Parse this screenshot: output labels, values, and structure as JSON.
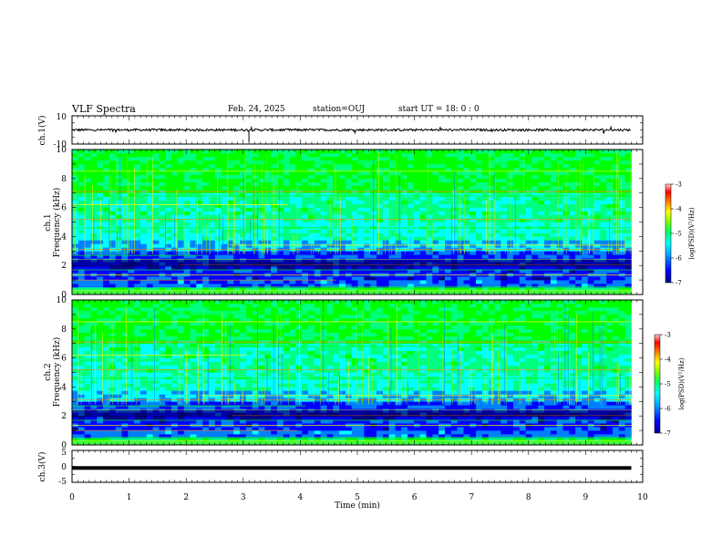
{
  "header": {
    "title": "VLF Spectra",
    "date": "Feb. 24, 2025",
    "station": "station=OUJ",
    "start": "start  UT =   18: 0  : 0"
  },
  "colors": {
    "spectrogram_palette": [
      "#00008b",
      "#0000ff",
      "#0080ff",
      "#00ffff",
      "#00ff80",
      "#00ff00",
      "#80ff00",
      "#ffff00",
      "#ff8000",
      "#ff0000",
      "#ffc0c0"
    ],
    "waveform": "#000000",
    "frame": "#000000"
  },
  "chart_data": [
    {
      "type": "line",
      "panel": "ch.1 waveform",
      "ylabel": "ch.1(V)",
      "ylim": [
        -10,
        10
      ],
      "yticks": [
        "10",
        "-10"
      ],
      "x": [
        0,
        1,
        2,
        3,
        4,
        5,
        6,
        7,
        8,
        9,
        9.8
      ],
      "series": [
        {
          "values": [
            0,
            0,
            0,
            0,
            0,
            0,
            0,
            0,
            0,
            0,
            0
          ]
        }
      ]
    },
    {
      "type": "heatmap",
      "panel": "ch.1 spectrogram",
      "ylabel": "ch.1\nFrequency (kHz)",
      "ylim": [
        0,
        10
      ],
      "yticks": [
        "0",
        "2",
        "4",
        "6",
        "8",
        "10"
      ],
      "colorbar": {
        "label": "log(PSD)(V²/Hz)",
        "range": [
          -7,
          -3
        ],
        "ticks": [
          "-3",
          "-4",
          "-5",
          "-6",
          "-7"
        ]
      }
    },
    {
      "type": "heatmap",
      "panel": "ch.2 spectrogram",
      "ylabel": "ch.2\nFrequency (kHz)",
      "ylim": [
        0,
        10
      ],
      "yticks": [
        "0",
        "2",
        "4",
        "6",
        "8",
        "10"
      ],
      "colorbar": {
        "label": "log(PSD)(V²/Hz)",
        "range": [
          -7,
          -3
        ],
        "ticks": [
          "-3",
          "-4",
          "-5",
          "-6",
          "-7"
        ]
      }
    },
    {
      "type": "line",
      "panel": "ch.3 waveform",
      "ylabel": "ch.3(V)",
      "ylim": [
        -5,
        5
      ],
      "yticks": [
        "5",
        "0",
        "-5"
      ],
      "x": [
        0,
        9.8
      ],
      "series": [
        {
          "values": [
            -0.5,
            -0.5
          ]
        }
      ]
    }
  ],
  "xaxis": {
    "label": "Time (min)",
    "range": [
      0,
      10
    ],
    "ticks": [
      "0",
      "1",
      "2",
      "3",
      "4",
      "5",
      "6",
      "7",
      "8",
      "9",
      "10"
    ]
  }
}
